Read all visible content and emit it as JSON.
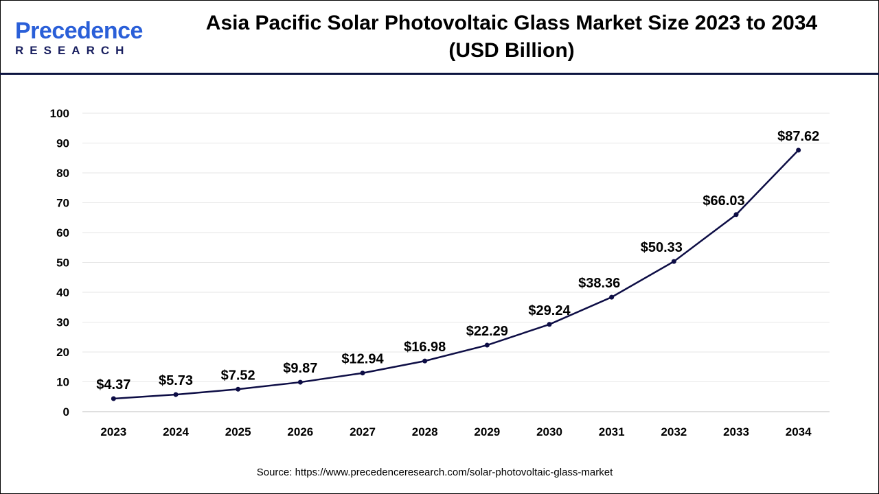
{
  "header": {
    "logo_text": "Precedence",
    "logo_subtext": "RESEARCH",
    "title": "Asia Pacific Solar Photovoltaic Glass Market Size 2023 to 2034 (USD Billion)"
  },
  "source": "Source: https://www.precedenceresearch.com/solar-photovoltaic-glass-market",
  "chart_data": {
    "type": "line",
    "title": "Asia Pacific Solar Photovoltaic Glass Market Size 2023 to 2034 (USD Billion)",
    "xlabel": "",
    "ylabel": "",
    "categories": [
      "2023",
      "2024",
      "2025",
      "2026",
      "2027",
      "2028",
      "2029",
      "2030",
      "2031",
      "2032",
      "2033",
      "2034"
    ],
    "values": [
      4.37,
      5.73,
      7.52,
      9.87,
      12.94,
      16.98,
      22.29,
      29.24,
      38.36,
      50.33,
      66.03,
      87.62
    ],
    "data_labels": [
      "$4.37",
      "$5.73",
      "$7.52",
      "$9.87",
      "$12.94",
      "$16.98",
      "$22.29",
      "$29.24",
      "$38.36",
      "$50.33",
      "$66.03",
      "$87.62"
    ],
    "ylim": [
      0,
      100
    ],
    "yticks": [
      0,
      10,
      20,
      30,
      40,
      50,
      60,
      70,
      80,
      90,
      100
    ],
    "grid": true,
    "legend": "none",
    "line_color": "#0d0d45",
    "grid_color": "#e6e6e6"
  }
}
